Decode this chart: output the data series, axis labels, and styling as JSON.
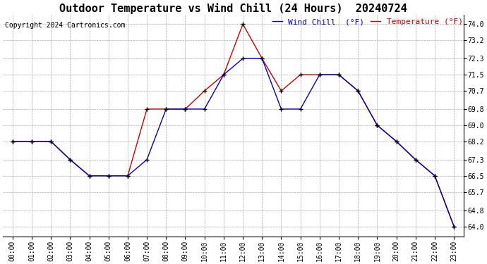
{
  "title": "Outdoor Temperature vs Wind Chill (24 Hours)  20240724",
  "copyright": "Copyright 2024 Cartronics.com",
  "legend_wind_chill": "Wind Chill  (°F)",
  "legend_temperature": "Temperature (°F)",
  "hours": [
    0,
    1,
    2,
    3,
    4,
    5,
    6,
    7,
    8,
    9,
    10,
    11,
    12,
    13,
    14,
    15,
    16,
    17,
    18,
    19,
    20,
    21,
    22,
    23
  ],
  "temperature": [
    68.2,
    68.2,
    68.2,
    67.3,
    66.5,
    66.5,
    66.5,
    69.8,
    69.8,
    69.8,
    70.7,
    71.5,
    74.0,
    72.3,
    70.7,
    71.5,
    71.5,
    71.5,
    70.7,
    69.0,
    68.2,
    67.3,
    66.5,
    64.0
  ],
  "wind_chill": [
    68.2,
    68.2,
    68.2,
    67.3,
    66.5,
    66.5,
    66.5,
    67.3,
    69.8,
    69.8,
    69.8,
    71.5,
    72.3,
    72.3,
    69.8,
    69.8,
    71.5,
    71.5,
    70.7,
    69.0,
    68.2,
    67.3,
    66.5,
    64.0
  ],
  "temp_color": "#cc0000",
  "wind_chill_color": "#0000cc",
  "marker_color": "#000000",
  "background_color": "#ffffff",
  "grid_color": "#aaaaaa",
  "ylim_min": 63.5,
  "ylim_max": 74.45,
  "yticks": [
    64.0,
    64.8,
    65.7,
    66.5,
    67.3,
    68.2,
    69.0,
    69.8,
    70.7,
    71.5,
    72.3,
    73.2,
    74.0
  ],
  "title_fontsize": 11,
  "tick_fontsize": 7,
  "copyright_fontsize": 7,
  "legend_fontsize": 8
}
